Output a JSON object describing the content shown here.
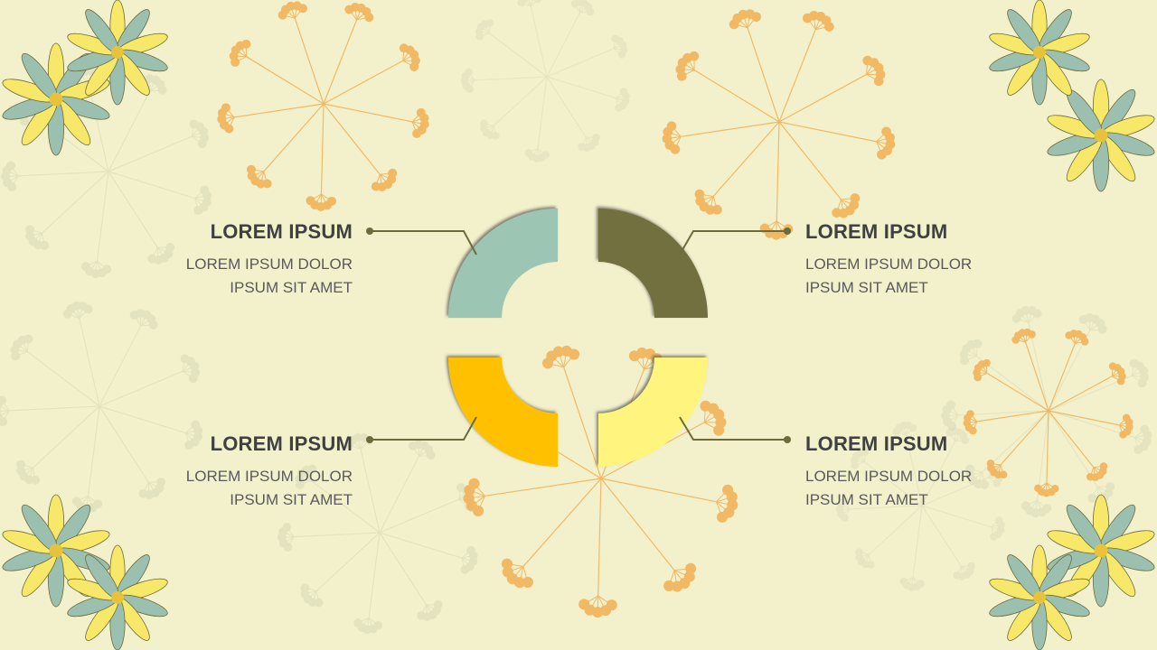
{
  "colors": {
    "background": "#f3f1cc",
    "segment_top_left": "#9dc5b3",
    "segment_top_right": "#737040",
    "segment_bottom_left": "#ffc000",
    "segment_bottom_right": "#fff57e",
    "connector": "#6b6b3c",
    "dandelion": "#f2b35a",
    "dandelion_faint": "#d9d8b6"
  },
  "items": [
    {
      "title": "LOREM IPSUM",
      "line1": "LOREM IPSUM DOLOR",
      "line2": "IPSUM SIT AMET"
    },
    {
      "title": "LOREM IPSUM",
      "line1": "LOREM IPSUM DOLOR",
      "line2": "IPSUM SIT AMET"
    },
    {
      "title": "LOREM IPSUM",
      "line1": "LOREM IPSUM DOLOR",
      "line2": "IPSUM SIT AMET"
    },
    {
      "title": "LOREM IPSUM",
      "line1": "LOREM IPSUM DOLOR",
      "line2": "IPSUM SIT AMET"
    }
  ],
  "decor": {
    "icons": [
      "dandelion-icon",
      "flower-icon"
    ]
  }
}
